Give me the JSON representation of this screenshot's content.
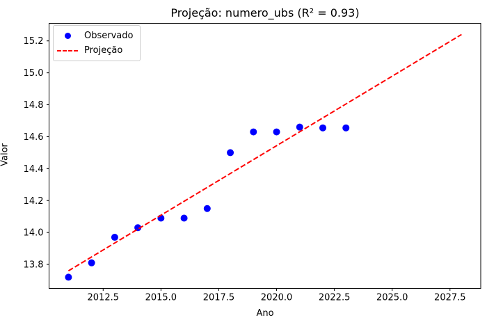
{
  "chart_data": {
    "type": "scatter",
    "title": "Projeção: numero_ubs (R² = 0.93)",
    "xlabel": "Ano",
    "ylabel": "Valor",
    "xlim": [
      2010.16,
      2028.83
    ],
    "ylim": [
      13.65,
      15.31
    ],
    "grid": false,
    "x_ticks": [
      2012.5,
      2015.0,
      2017.5,
      2020.0,
      2022.5,
      2025.0,
      2027.5
    ],
    "x_tick_labels": [
      "2012.5",
      "2015.0",
      "2017.5",
      "2020.0",
      "2022.5",
      "2025.0",
      "2027.5"
    ],
    "y_ticks": [
      13.8,
      14.0,
      14.2,
      14.4,
      14.6,
      14.8,
      15.0,
      15.2
    ],
    "y_tick_labels": [
      "13.8",
      "14.0",
      "14.2",
      "14.4",
      "14.6",
      "14.8",
      "15.0",
      "15.2"
    ],
    "legend": {
      "position": "upper-left",
      "entries": [
        "Observado",
        "Projeção"
      ]
    },
    "series": [
      {
        "name": "Observado",
        "type": "scatter",
        "color": "#0000ff",
        "x": [
          2011,
          2012,
          2013,
          2014,
          2015,
          2016,
          2017,
          2018,
          2019,
          2020,
          2021,
          2022,
          2023
        ],
        "y": [
          13.72,
          13.81,
          13.97,
          14.03,
          14.09,
          14.09,
          14.15,
          14.5,
          14.63,
          14.63,
          14.66,
          14.655,
          14.655
        ]
      },
      {
        "name": "Projeção",
        "type": "line",
        "style": "dashed",
        "color": "#ff0000",
        "x": [
          2011,
          2028
        ],
        "y": [
          13.76,
          15.24
        ]
      }
    ],
    "colors": {
      "observed": "#0000ff",
      "projection": "#ff0000",
      "axis": "#000000",
      "background": "#ffffff",
      "legend_border": "#cccccc"
    }
  }
}
